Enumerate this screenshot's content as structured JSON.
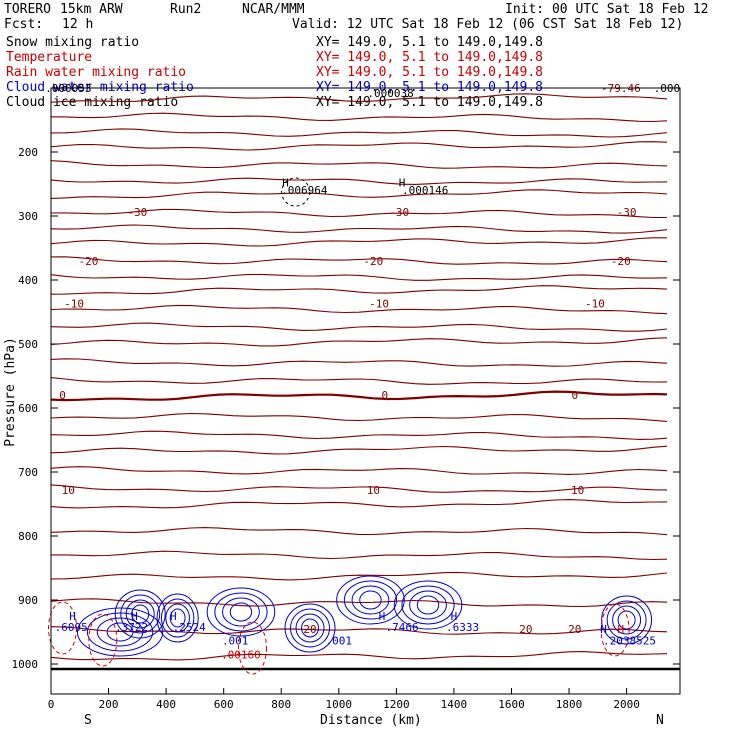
{
  "header": {
    "model": "TORERO",
    "resolution": "15km ARW",
    "run": "Run2",
    "org": "NCAR/MMM",
    "init": "Init: 00 UTC Sat 18 Feb 12",
    "fcst_label": "Fcst:",
    "fcst_value": "12 h",
    "valid": "Valid: 12 UTC Sat 18 Feb 12 (06 CST Sat 18 Feb 12)"
  },
  "fields": [
    {
      "name": "Snow mixing ratio",
      "xy": "XY= 149.0,  5.1 to 149.0,149.8",
      "color": "#000000"
    },
    {
      "name": "Temperature",
      "xy": "XY= 149.0,  5.1 to 149.0,149.8",
      "color": "#cc0000"
    },
    {
      "name": "Rain water mixing ratio",
      "xy": "XY= 149.0,  5.1 to 149.0,149.8",
      "color": "#cc0000"
    },
    {
      "name": "Cloud water mixing ratio",
      "xy": "XY= 149.0,  5.1 to 149.0,149.8",
      "color": "#0000cc"
    },
    {
      "name": "Cloud ice mixing ratio",
      "xy": "XY= 149.0,  5.1 to 149.0,149.8",
      "color": "#000000"
    }
  ],
  "chart_data": {
    "type": "contour",
    "xlabel": "Distance (km)",
    "ylabel": "Pressure (hPa)",
    "xlim": [
      0,
      2180
    ],
    "ylim": [
      1010,
      100
    ],
    "y_scale": "log",
    "x_ticks": [
      0,
      200,
      400,
      600,
      800,
      1000,
      1200,
      1400,
      1600,
      1800,
      2000
    ],
    "y_ticks": [
      200,
      300,
      400,
      500,
      600,
      700,
      800,
      900,
      1000
    ],
    "endpoint_labels": {
      "left": "S",
      "right": "N"
    },
    "colors": {
      "temperature": "#800000",
      "cloud_water": "#0000cc",
      "rain_water": "#cc0000",
      "ice": "#000000",
      "ground": "#000000"
    },
    "temperature_isotherms": [
      {
        "label": "-79.46",
        "x": 1980,
        "p": 100
      },
      {
        "label": "-30",
        "x": [
          300,
          1210,
          2000
        ],
        "p": 294
      },
      {
        "label": "-20",
        "x": [
          130,
          1120,
          1980
        ],
        "p": 370
      },
      {
        "label": "-10",
        "x": [
          80,
          1140,
          1890
        ],
        "p": 437
      },
      {
        "label": "0",
        "x": [
          40,
          1160,
          1820
        ],
        "p": 580
      },
      {
        "label": "10",
        "x": [
          60,
          1120,
          1830
        ],
        "p": 728
      },
      {
        "label": "20",
        "x": [
          900,
          1650,
          1820
        ],
        "p": 945
      }
    ],
    "ice_labels": [
      {
        "label": ".006964",
        "x": 880,
        "p": 259
      },
      {
        "label": ".000146",
        "x": 1300,
        "p": 259
      },
      {
        "label": ".000038",
        "x": 1180,
        "p": 108
      },
      {
        "label": ".000053",
        "x": 60,
        "p": 100
      },
      {
        "label": ".000",
        "x": 2140,
        "p": 100
      }
    ],
    "cloud_water_labels": [
      {
        "label": ".6095",
        "x": 70,
        "p": 942
      },
      {
        "label": ".3722",
        "x": 280,
        "p": 942
      },
      {
        "label": ".2524",
        "x": 480,
        "p": 942
      },
      {
        "label": ".001",
        "x": 640,
        "p": 963
      },
      {
        "label": ".001",
        "x": 1000,
        "p": 963
      },
      {
        "label": ".7466",
        "x": 1220,
        "p": 942
      },
      {
        "label": ".6333",
        "x": 1430,
        "p": 942
      },
      {
        "label": ".2038525",
        "x": 2010,
        "p": 963
      }
    ],
    "rain_labels": [
      {
        "label": ".00160",
        "x": 660,
        "p": 985
      }
    ],
    "maxima_markers": [
      {
        "label": "H",
        "x": 815,
        "p": 248,
        "color": "black"
      },
      {
        "label": "H",
        "x": 1220,
        "p": 248,
        "color": "black"
      },
      {
        "label": "H",
        "x": 75,
        "p": 925,
        "color": "blue"
      },
      {
        "label": "H",
        "x": 290,
        "p": 925,
        "color": "blue"
      },
      {
        "label": "H",
        "x": 425,
        "p": 925,
        "color": "blue"
      },
      {
        "label": "H",
        "x": 1150,
        "p": 925,
        "color": "blue"
      },
      {
        "label": "H",
        "x": 1400,
        "p": 925,
        "color": "blue"
      },
      {
        "label": "H",
        "x": 1920,
        "p": 945,
        "color": "blue"
      },
      {
        "label": "H",
        "x": 1980,
        "p": 945,
        "color": "red"
      }
    ]
  }
}
